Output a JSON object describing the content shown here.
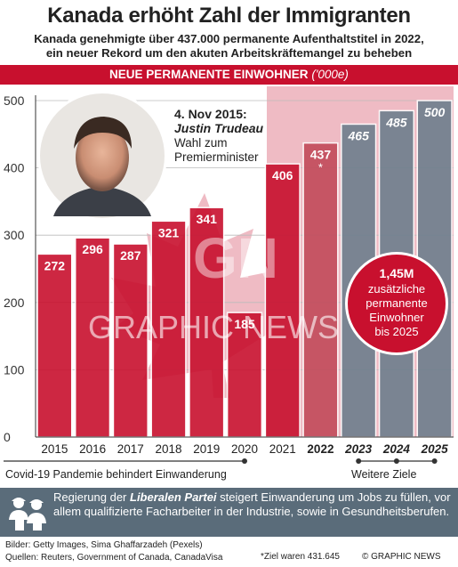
{
  "header": {
    "title": "Kanada erhöht Zahl der Immigranten",
    "subtitle_line1": "Kanada genehmigte über 437.000 permanente Aufenthaltstitel in 2022,",
    "subtitle_line2": "ein neuer Rekord um den akuten Arbeitskräftemangel zu beheben",
    "banner_label": "NEUE PERMANENTE EINWOHNER",
    "banner_unit": "('000e)"
  },
  "annotation": {
    "date": "4. Nov 2015:",
    "name": "Justin Trudeau",
    "line1": "Wahl zum",
    "line2": "Premierminister"
  },
  "callout": {
    "value": "1,45M",
    "line1": "zusätzliche",
    "line2": "permanente",
    "line3": "Einwohner",
    "line4": "bis 2025"
  },
  "watermark": {
    "text": "GRAPHIC NEWS",
    "logo": "GN"
  },
  "footnotes": {
    "covid": "Covid-19 Pandemie behindert Einwanderung",
    "targets": "Weitere Ziele"
  },
  "info": {
    "prefix": "Regierung der ",
    "party": "Liberalen Partei",
    "rest": " steigert Einwanderung um Jobs zu füllen, vor allem qualifizierte Facharbeiter in der Industrie, sowie in Gesundheitsberufen.",
    "icon": "workers-icon"
  },
  "credits": {
    "images": "Bilder: Getty Images, Sima Ghaffarzadeh (Pexels)",
    "sources": "Quellen: Reuters, Government of Canada, CanadaVisa",
    "note": "*Ziel waren 431.645",
    "brand": "© GRAPHIC NEWS"
  },
  "colors": {
    "red": "#c8102e",
    "dark_red": "#8e0a1c",
    "grey": "#6e7f8d",
    "panel": "#5a6c7a"
  },
  "chart_data": {
    "type": "bar",
    "categories": [
      "2015",
      "2016",
      "2017",
      "2018",
      "2019",
      "2020",
      "2021",
      "2022",
      "2023",
      "2024",
      "2025"
    ],
    "values": [
      272,
      296,
      287,
      321,
      341,
      185,
      406,
      437,
      465,
      485,
      500
    ],
    "value_labels": [
      "272",
      "296",
      "287",
      "321",
      "341",
      "185",
      "406",
      "437",
      "465",
      "485",
      "500"
    ],
    "label_suffix": [
      "",
      "",
      "",
      "",
      "",
      "",
      "",
      "*",
      "",
      "",
      ""
    ],
    "highlight_categories": [
      "2022",
      "2023",
      "2024",
      "2025"
    ],
    "target_categories": [
      "2023",
      "2024",
      "2025"
    ],
    "yticks": [
      0,
      100,
      200,
      300,
      400,
      500
    ],
    "ylim": [
      0,
      500
    ],
    "grid": true,
    "title": "",
    "xlabel": "",
    "ylabel": ""
  }
}
